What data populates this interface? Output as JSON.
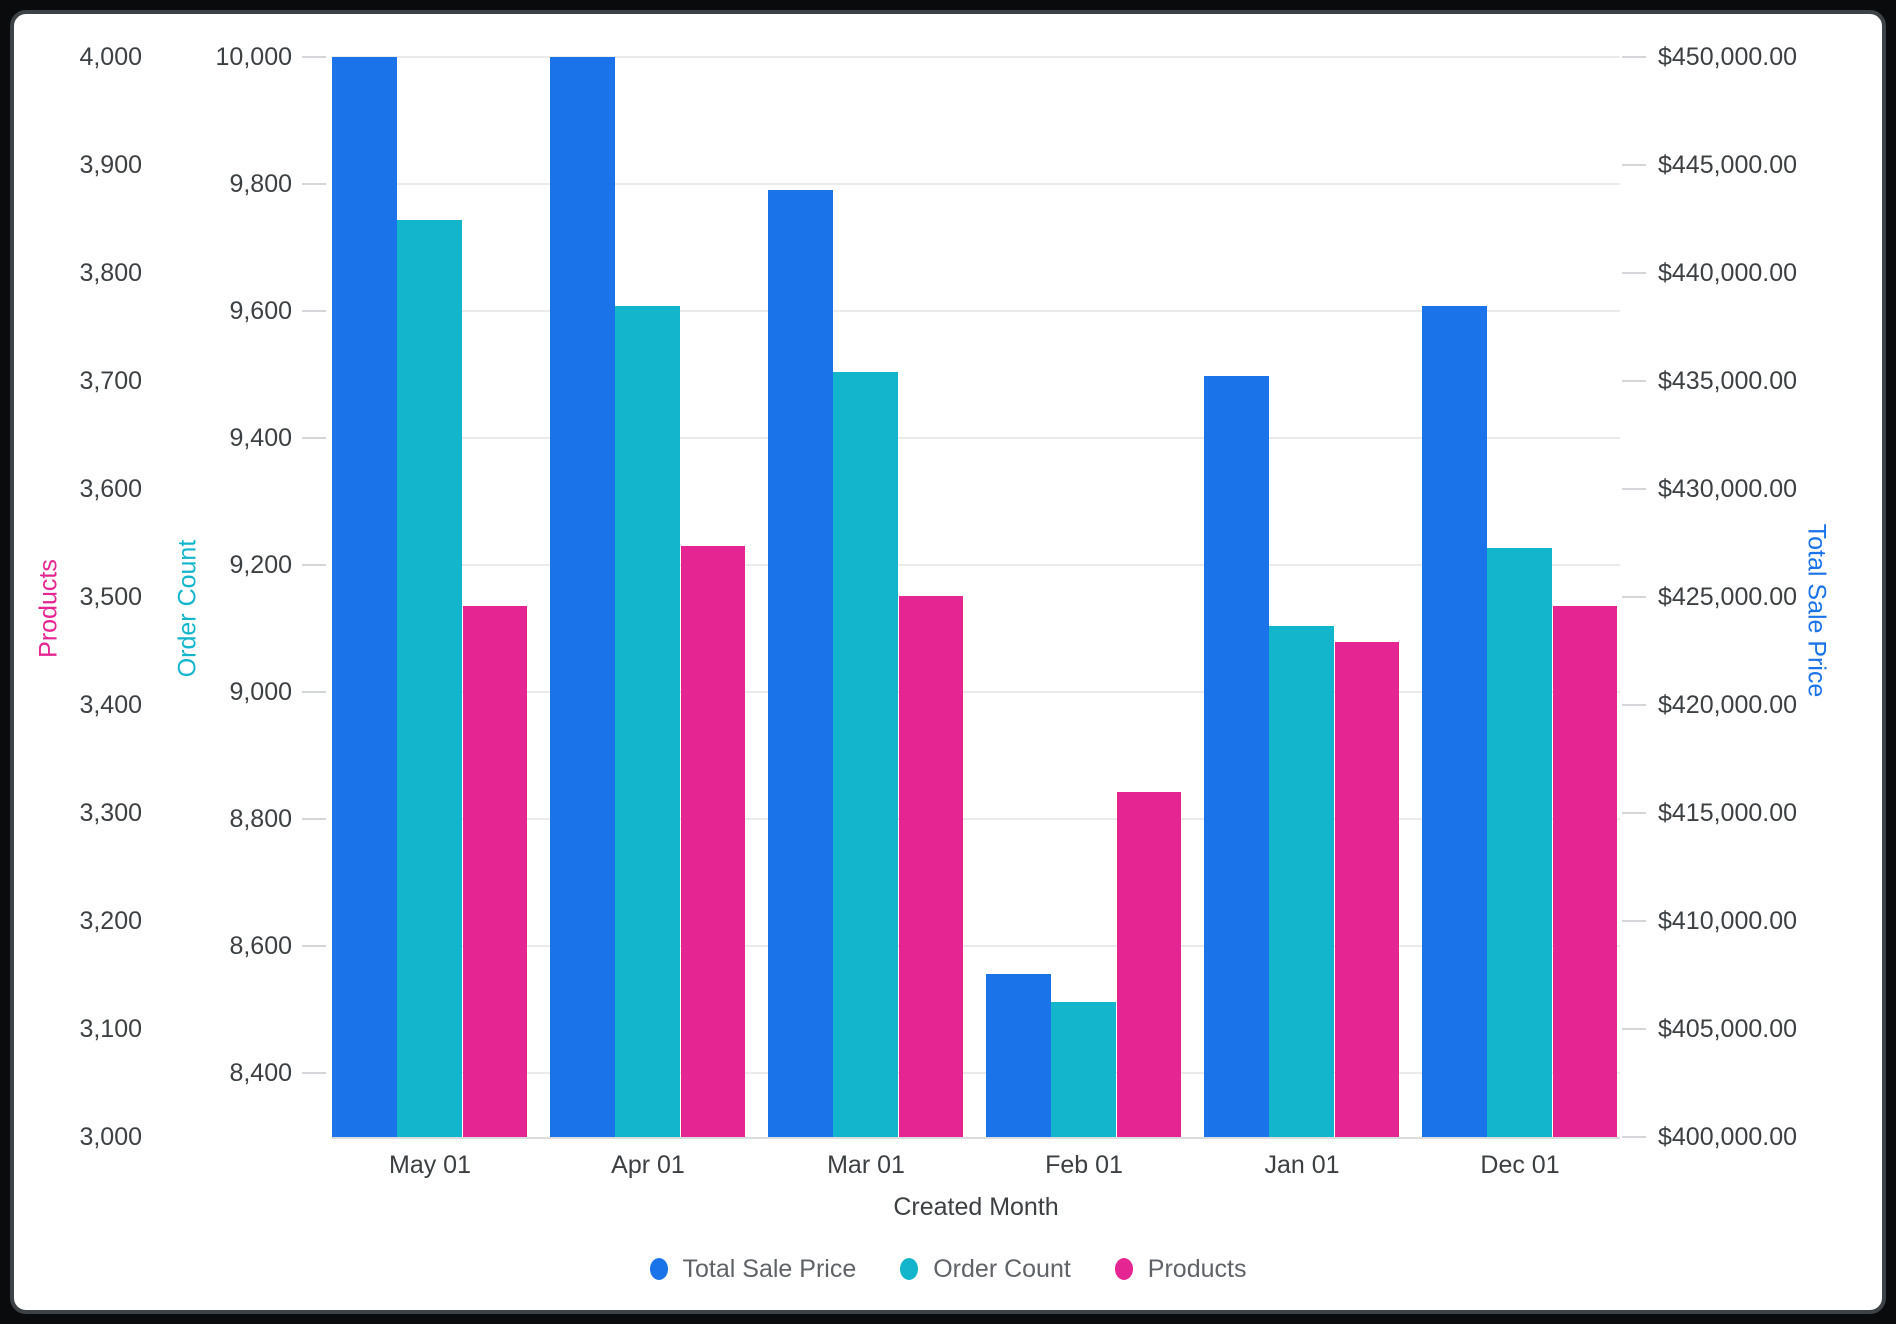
{
  "chart_data": {
    "type": "bar",
    "title": "",
    "xlabel": "Created Month",
    "categories": [
      "May 01",
      "Apr 01",
      "Mar 01",
      "Feb 01",
      "Jan 01",
      "Dec 01"
    ],
    "series": [
      {
        "name": "Total Sale Price",
        "axis": "total_sale_price",
        "color": "#1A73E8",
        "values": [
          450000,
          450000,
          443840,
          407545,
          435230,
          438470
        ]
      },
      {
        "name": "Order Count",
        "axis": "order_count",
        "color": "#12B5CB",
        "values": [
          9743,
          9608,
          9504,
          8512,
          9104,
          9227
        ]
      },
      {
        "name": "Products",
        "axis": "products",
        "color": "#E52592",
        "values": [
          3492,
          3547,
          3501,
          3319,
          3458,
          3492
        ]
      }
    ],
    "axes": {
      "products": {
        "title": "Products",
        "side": "left-outer",
        "color": "#E52592",
        "min": 3000,
        "max": 4000,
        "ticks": [
          {
            "value": 4000,
            "label": "4,000"
          },
          {
            "value": 3900,
            "label": "3,900"
          },
          {
            "value": 3800,
            "label": "3,800"
          },
          {
            "value": 3700,
            "label": "3,700"
          },
          {
            "value": 3600,
            "label": "3,600"
          },
          {
            "value": 3500,
            "label": "3,500"
          },
          {
            "value": 3400,
            "label": "3,400"
          },
          {
            "value": 3300,
            "label": "3,300"
          },
          {
            "value": 3200,
            "label": "3,200"
          },
          {
            "value": 3100,
            "label": "3,100"
          },
          {
            "value": 3000,
            "label": "3,000"
          }
        ]
      },
      "order_count": {
        "title": "Order Count",
        "side": "left-inner",
        "color": "#12B5CB",
        "min": 8300,
        "max": 10000,
        "ticks": [
          {
            "value": 10000,
            "label": "10,000"
          },
          {
            "value": 9800,
            "label": "9,800"
          },
          {
            "value": 9600,
            "label": "9,600"
          },
          {
            "value": 9400,
            "label": "9,400"
          },
          {
            "value": 9200,
            "label": "9,200"
          },
          {
            "value": 9000,
            "label": "9,000"
          },
          {
            "value": 8800,
            "label": "8,800"
          },
          {
            "value": 8600,
            "label": "8,600"
          },
          {
            "value": 8400,
            "label": "8,400"
          }
        ]
      },
      "total_sale_price": {
        "title": "Total Sale Price",
        "side": "right",
        "color": "#1A73E8",
        "min": 400000,
        "max": 450000,
        "ticks": [
          {
            "value": 450000,
            "label": "$450,000.00"
          },
          {
            "value": 445000,
            "label": "$445,000.00"
          },
          {
            "value": 440000,
            "label": "$440,000.00"
          },
          {
            "value": 435000,
            "label": "$435,000.00"
          },
          {
            "value": 430000,
            "label": "$430,000.00"
          },
          {
            "value": 425000,
            "label": "$425,000.00"
          },
          {
            "value": 420000,
            "label": "$420,000.00"
          },
          {
            "value": 415000,
            "label": "$415,000.00"
          },
          {
            "value": 410000,
            "label": "$410,000.00"
          },
          {
            "value": 405000,
            "label": "$405,000.00"
          },
          {
            "value": 400000,
            "label": "$400,000.00"
          }
        ]
      }
    },
    "gridlines_axis": "order_count",
    "legend": [
      {
        "label": "Total Sale Price",
        "color": "#1A73E8"
      },
      {
        "label": "Order Count",
        "color": "#12B5CB"
      },
      {
        "label": "Products",
        "color": "#E52592"
      }
    ],
    "legend_position": "bottom-center",
    "grid": true
  },
  "palette": {
    "grid_line": "#ebebec",
    "axis_line": "#dadce0",
    "tick_text": "#3c4043",
    "legend_text": "#5f6368",
    "frame_border": "#3d4247",
    "frame_background": "#0a0b0c",
    "chart_background": "#ffffff"
  }
}
